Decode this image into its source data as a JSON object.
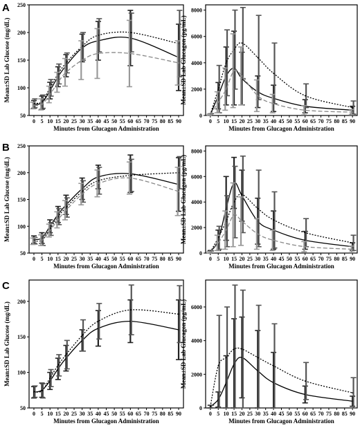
{
  "figure": {
    "panel_letters": [
      "A",
      "B",
      "C"
    ]
  },
  "chart_data": [
    {
      "panel": "A",
      "type": "line",
      "ylabel": "Mean±SD Lab Glucose (mg/dL)",
      "xlabel": "Minutes from Glucagon Administration",
      "x_ticks": [
        0,
        5,
        10,
        15,
        20,
        25,
        30,
        35,
        40,
        45,
        50,
        55,
        60,
        65,
        70,
        75,
        80,
        85,
        90
      ],
      "y_ticks": [
        50,
        100,
        150,
        200,
        250
      ],
      "xlim": [
        -3,
        93
      ],
      "ylim": [
        50,
        250
      ],
      "grid": false,
      "series": [
        {
          "style": "solid",
          "color": "#000000",
          "x": [
            0,
            5,
            10,
            15,
            20,
            30,
            40,
            60,
            90
          ],
          "y": [
            70,
            73,
            95,
            120,
            140,
            172,
            185,
            190,
            155
          ],
          "sd": [
            7,
            12,
            15,
            18,
            20,
            25,
            35,
            50,
            60
          ]
        },
        {
          "style": "dotted",
          "color": "#000000",
          "x": [
            0,
            5,
            10,
            15,
            20,
            30,
            40,
            60,
            90
          ],
          "y": [
            72,
            75,
            100,
            125,
            145,
            175,
            195,
            200,
            180
          ],
          "sd": [
            8,
            12,
            15,
            18,
            18,
            25,
            30,
            35,
            60
          ]
        },
        {
          "style": "dashed",
          "color": "#888888",
          "x": [
            0,
            5,
            10,
            15,
            20,
            30,
            40,
            60,
            90
          ],
          "y": [
            68,
            70,
            88,
            110,
            128,
            150,
            162,
            162,
            145
          ],
          "sd": [
            6,
            10,
            15,
            18,
            25,
            35,
            45,
            60,
            40
          ]
        }
      ]
    },
    {
      "panel": "A",
      "type": "line",
      "ylabel": "Mean±SD Lab Glucagon (pg/mL)",
      "xlabel": "Minutes from Glucagon Administration",
      "x_ticks": [
        0,
        5,
        10,
        15,
        20,
        25,
        30,
        35,
        40,
        45,
        50,
        55,
        60,
        65,
        70,
        75,
        80,
        85,
        90
      ],
      "y_ticks": [
        0,
        2000,
        4000,
        6000,
        8000
      ],
      "xlim": [
        -3,
        93
      ],
      "ylim": [
        0,
        8400
      ],
      "grid": false,
      "series": [
        {
          "style": "solid",
          "color": "#000000",
          "x": [
            0,
            5,
            10,
            15,
            20,
            30,
            40,
            60,
            90
          ],
          "y": [
            60,
            1500,
            3000,
            3600,
            2800,
            1800,
            1300,
            700,
            400
          ],
          "sd": [
            60,
            1000,
            2200,
            2800,
            2000,
            1200,
            1000,
            500,
            300
          ]
        },
        {
          "style": "dotted",
          "color": "#000000",
          "x": [
            0,
            5,
            10,
            15,
            20,
            30,
            40,
            60,
            90
          ],
          "y": [
            70,
            2000,
            4000,
            5000,
            5500,
            4400,
            3200,
            1500,
            600
          ],
          "sd": [
            70,
            1800,
            2500,
            3000,
            2700,
            3200,
            2300,
            900,
            500
          ]
        },
        {
          "style": "dashed",
          "color": "#888888",
          "x": [
            0,
            5,
            10,
            15,
            20,
            30,
            40,
            60,
            90
          ],
          "y": [
            50,
            1000,
            2000,
            3400,
            3000,
            1500,
            900,
            400,
            250
          ],
          "sd": [
            50,
            800,
            1600,
            2800,
            2200,
            1200,
            700,
            350,
            200
          ]
        }
      ]
    },
    {
      "panel": "B",
      "type": "line",
      "ylabel": "Mean±SD Lab Glucose (mg/dL)",
      "xlabel": "Minutes from Glucagon Administration",
      "x_ticks": [
        0,
        5,
        10,
        15,
        20,
        25,
        30,
        35,
        40,
        45,
        50,
        55,
        60,
        65,
        70,
        75,
        80,
        85,
        90
      ],
      "y_ticks": [
        50,
        100,
        150,
        200,
        250
      ],
      "xlim": [
        -3,
        93
      ],
      "ylim": [
        50,
        250
      ],
      "grid": false,
      "series": [
        {
          "style": "solid",
          "color": "#000000",
          "x": [
            0,
            5,
            10,
            15,
            20,
            30,
            40,
            60,
            90
          ],
          "y": [
            75,
            78,
            100,
            122,
            140,
            170,
            192,
            198,
            178
          ],
          "sd": [
            7,
            10,
            12,
            15,
            18,
            20,
            22,
            35,
            50
          ]
        },
        {
          "style": "dotted",
          "color": "#000000",
          "x": [
            0,
            5,
            10,
            15,
            20,
            30,
            40,
            60,
            90
          ],
          "y": [
            73,
            74,
            95,
            118,
            135,
            165,
            185,
            195,
            200
          ],
          "sd": [
            6,
            10,
            12,
            15,
            18,
            20,
            25,
            30,
            30
          ]
        },
        {
          "style": "dashed",
          "color": "#888888",
          "x": [
            0,
            5,
            10,
            15,
            20,
            30,
            40,
            60,
            90
          ],
          "y": [
            72,
            74,
            92,
            112,
            130,
            160,
            180,
            190,
            165
          ],
          "sd": [
            6,
            10,
            12,
            15,
            18,
            20,
            25,
            30,
            45
          ]
        }
      ]
    },
    {
      "panel": "B",
      "type": "line",
      "ylabel": "Mean±SD Lab Glucagon (pg/mL)",
      "xlabel": "Minutes from Glucagon Administration",
      "x_ticks": [
        0,
        5,
        10,
        15,
        20,
        25,
        30,
        35,
        40,
        45,
        50,
        55,
        60,
        65,
        70,
        75,
        80,
        85,
        90
      ],
      "y_ticks": [
        0,
        2000,
        4000,
        6000,
        8000
      ],
      "xlim": [
        -3,
        93
      ],
      "ylim": [
        0,
        8400
      ],
      "grid": false,
      "series": [
        {
          "style": "solid",
          "color": "#000000",
          "x": [
            0,
            5,
            10,
            15,
            20,
            30,
            40,
            60,
            90
          ],
          "y": [
            100,
            1000,
            3500,
            5500,
            4500,
            2500,
            1800,
            1000,
            500
          ],
          "sd": [
            100,
            800,
            2500,
            2000,
            2000,
            1800,
            1500,
            700,
            300
          ]
        },
        {
          "style": "dotted",
          "color": "#000000",
          "x": [
            0,
            5,
            10,
            15,
            20,
            30,
            40,
            60,
            90
          ],
          "y": [
            80,
            1200,
            2500,
            4000,
            4600,
            3500,
            2600,
            1600,
            800
          ],
          "sd": [
            80,
            900,
            2000,
            2800,
            3000,
            3000,
            2200,
            1100,
            600
          ]
        },
        {
          "style": "dashed",
          "color": "#888888",
          "x": [
            0,
            5,
            10,
            15,
            20,
            30,
            40,
            60,
            90
          ],
          "y": [
            60,
            800,
            1800,
            3000,
            2500,
            1500,
            1000,
            500,
            300
          ],
          "sd": [
            60,
            600,
            1500,
            2500,
            1900,
            1200,
            800,
            400,
            250
          ]
        }
      ]
    },
    {
      "panel": "C",
      "type": "line",
      "ylabel": "Mean±SD Lab Glucose (mg/dL)",
      "xlabel": "Minutes from Glucagon Administration",
      "x_ticks": [
        0,
        5,
        10,
        15,
        20,
        25,
        30,
        35,
        40,
        45,
        50,
        55,
        60,
        65,
        70,
        75,
        80,
        85,
        90
      ],
      "y_ticks": [
        50,
        100,
        150,
        200
      ],
      "xlim": [
        -3,
        93
      ],
      "ylim": [
        50,
        230
      ],
      "grid": false,
      "series": [
        {
          "style": "solid",
          "color": "#000000",
          "x": [
            0,
            5,
            10,
            15,
            20,
            30,
            40,
            60,
            90
          ],
          "y": [
            72,
            75,
            88,
            105,
            120,
            145,
            162,
            172,
            160
          ],
          "sd": [
            8,
            10,
            12,
            15,
            18,
            15,
            25,
            30,
            42
          ]
        },
        {
          "style": "dotted",
          "color": "#000000",
          "x": [
            0,
            5,
            10,
            15,
            20,
            30,
            40,
            60,
            90
          ],
          "y": [
            73,
            74,
            92,
            110,
            125,
            152,
            172,
            188,
            182
          ],
          "sd": [
            8,
            10,
            12,
            15,
            20,
            22,
            25,
            35,
            40
          ]
        }
      ]
    },
    {
      "panel": "C",
      "type": "line",
      "ylabel": "Mean±SD Lab Glucagon (pg/mL)",
      "xlabel": "Minutes from Glucagon Administration",
      "x_ticks": [
        0,
        5,
        10,
        15,
        20,
        25,
        30,
        35,
        40,
        45,
        50,
        55,
        60,
        65,
        70,
        75,
        80,
        85,
        90
      ],
      "y_ticks": [
        0,
        2000,
        4000,
        6000
      ],
      "xlim": [
        -3,
        93
      ],
      "ylim": [
        0,
        7600
      ],
      "grid": false,
      "series": [
        {
          "style": "solid",
          "color": "#000000",
          "x": [
            0,
            5,
            10,
            15,
            20,
            30,
            40,
            60,
            90
          ],
          "y": [
            80,
            500,
            1500,
            2600,
            3000,
            2200,
            1500,
            800,
            400
          ],
          "sd": [
            80,
            450,
            1600,
            2700,
            2400,
            2400,
            1800,
            500,
            300
          ]
        },
        {
          "style": "dotted",
          "color": "#000000",
          "x": [
            0,
            5,
            10,
            15,
            20,
            30,
            40,
            60,
            90
          ],
          "y": [
            80,
            2500,
            3000,
            3500,
            3500,
            3000,
            2500,
            1600,
            900
          ],
          "sd": [
            80,
            3000,
            3000,
            3800,
            3500,
            3100,
            2500,
            1100,
            900
          ]
        }
      ]
    }
  ]
}
